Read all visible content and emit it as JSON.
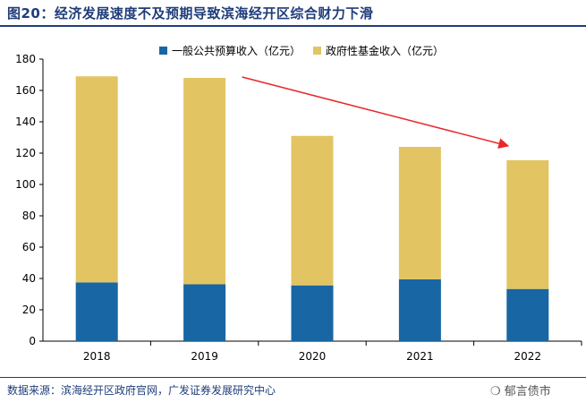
{
  "title": "图20：经济发展速度不及预期导致滨海经开区综合财力下滑",
  "source": "数据来源：滨海经开区政府官网，广发证券发展研究中心",
  "watermark": "郁言债市",
  "colors": {
    "general": "#1866a3",
    "fund": "#e2c463",
    "arrow": "#e8282c",
    "accent": "#1f3d7a"
  },
  "chart_data": {
    "type": "bar",
    "stacked": true,
    "categories": [
      "2018",
      "2019",
      "2020",
      "2021",
      "2022"
    ],
    "series": [
      {
        "name": "一般公共预算收入（亿元）",
        "values": [
          37.5,
          36.3,
          35.6,
          39.5,
          33.3
        ]
      },
      {
        "name": "政府性基金收入（亿元）",
        "values": [
          131.5,
          131.7,
          95.4,
          84.5,
          82.2
        ]
      }
    ],
    "ylim": [
      0,
      180
    ],
    "yticks": [
      "0",
      "20",
      "40",
      "60",
      "80",
      "100",
      "120",
      "140",
      "160",
      "180"
    ],
    "legend_position": "top",
    "annotation": "downward trend arrow from 2019 to 2022"
  }
}
